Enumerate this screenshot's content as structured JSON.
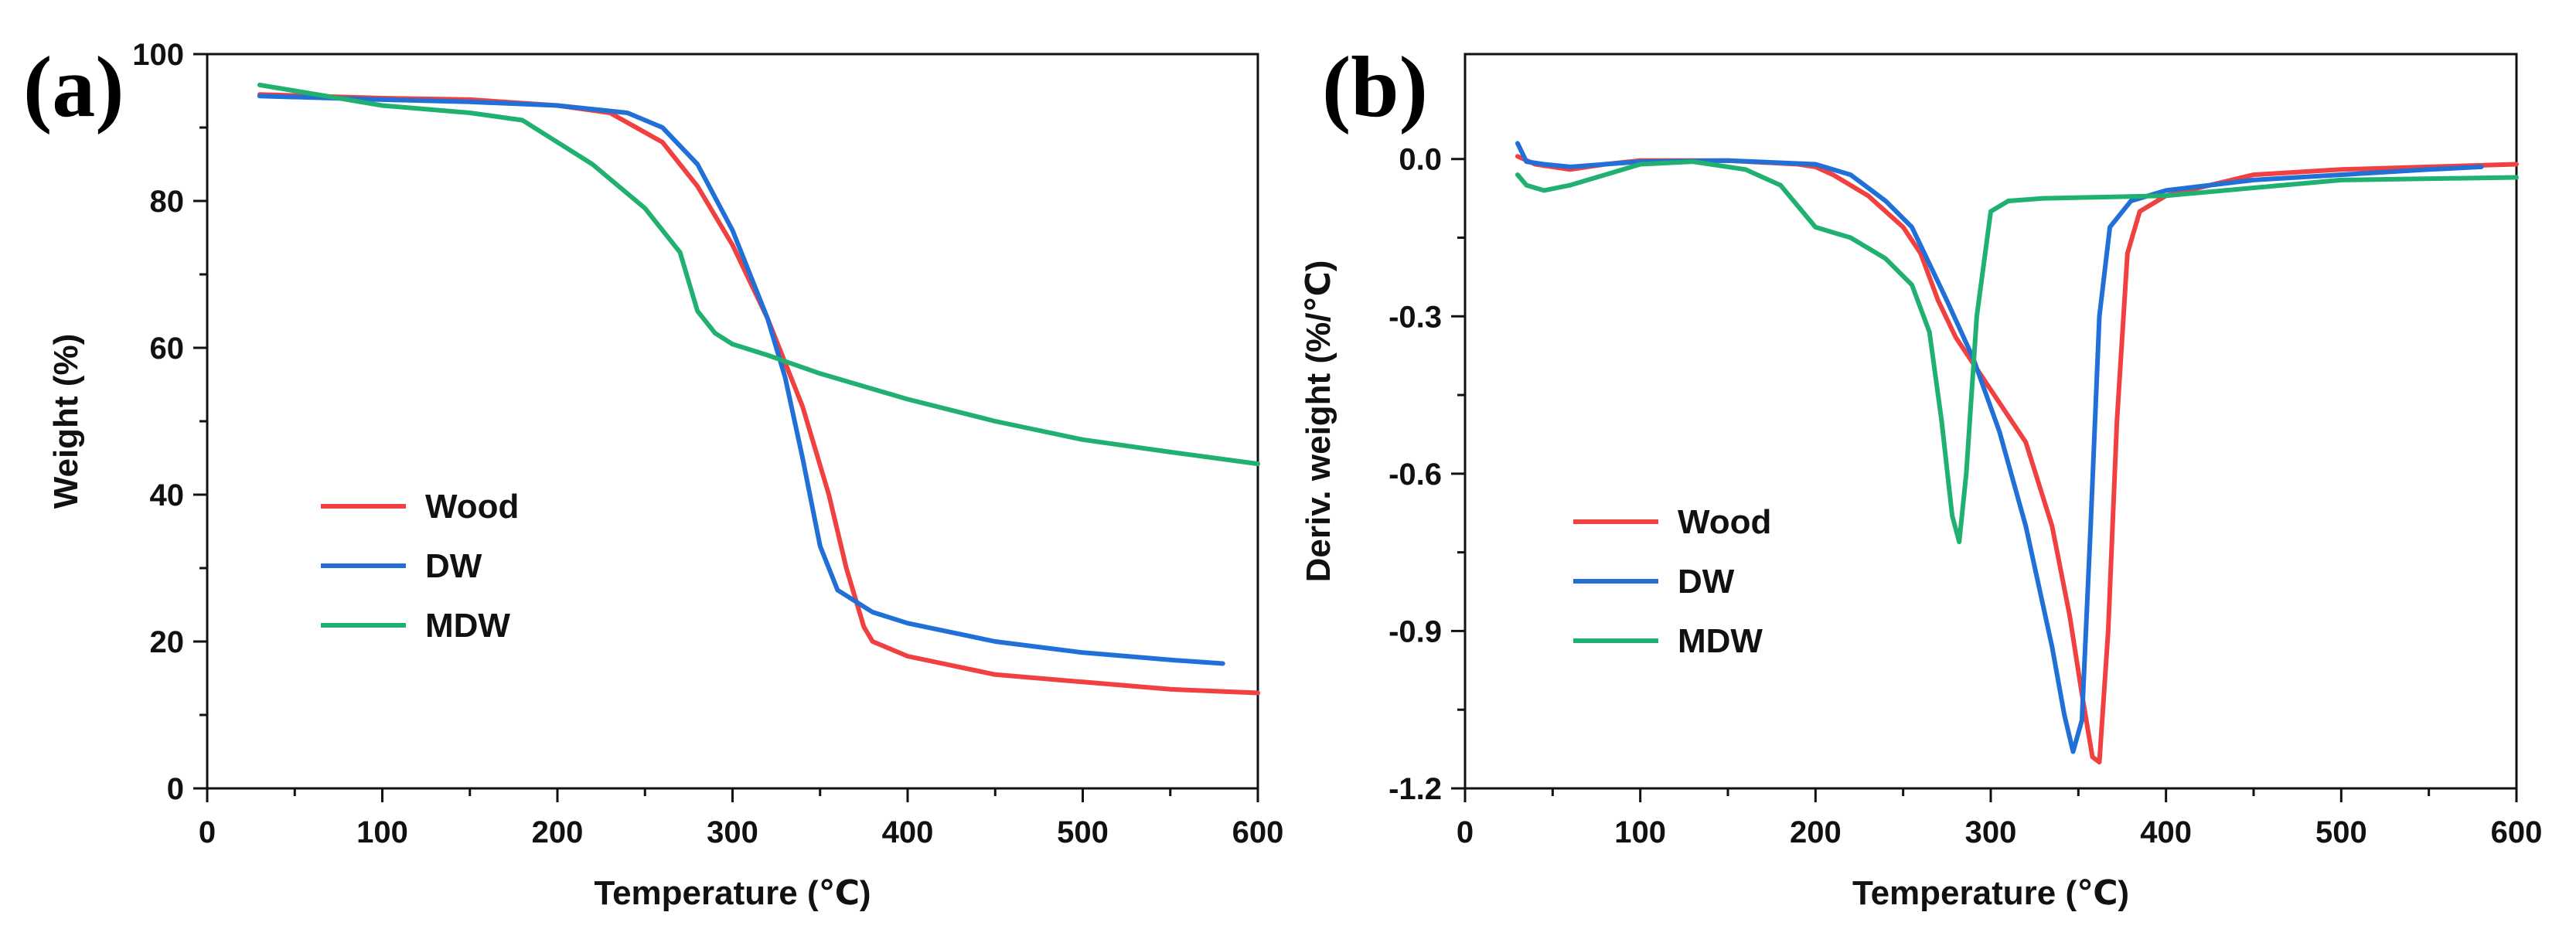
{
  "chart_data": [
    {
      "type": "line",
      "panel_label": "(a)",
      "title": "",
      "xlabel": "Temperature (℃)",
      "ylabel": "Weight (%)",
      "xlim": [
        0,
        600
      ],
      "ylim": [
        0,
        100
      ],
      "x_ticks": [
        "0",
        "100",
        "200",
        "300",
        "400",
        "500",
        "600"
      ],
      "y_ticks": [
        "0",
        "20",
        "40",
        "60",
        "80",
        "100"
      ],
      "legend_position": "lower-left",
      "series": [
        {
          "name": "Wood",
          "color": "#f04040",
          "x": [
            30,
            100,
            150,
            200,
            230,
            260,
            280,
            300,
            320,
            340,
            355,
            365,
            375,
            380,
            400,
            450,
            500,
            550,
            600
          ],
          "y": [
            94.5,
            94,
            93.8,
            93,
            92,
            88,
            82,
            74,
            64,
            52,
            40,
            30,
            22,
            20,
            18,
            15.5,
            14.5,
            13.5,
            13
          ]
        },
        {
          "name": "DW",
          "color": "#2070d8",
          "x": [
            30,
            100,
            150,
            200,
            240,
            260,
            280,
            300,
            320,
            330,
            340,
            350,
            360,
            380,
            400,
            450,
            500,
            550,
            580
          ],
          "y": [
            94.3,
            93.8,
            93.5,
            93,
            92,
            90,
            85,
            76,
            64,
            56,
            45,
            33,
            27,
            24,
            22.5,
            20,
            18.5,
            17.5,
            17
          ]
        },
        {
          "name": "MDW",
          "color": "#20b070",
          "x": [
            30,
            50,
            100,
            150,
            180,
            200,
            220,
            250,
            270,
            280,
            290,
            300,
            320,
            350,
            400,
            450,
            500,
            550,
            600
          ],
          "y": [
            95.8,
            95,
            93,
            92,
            91,
            88,
            85,
            79,
            73,
            65,
            62,
            60.5,
            59,
            56.5,
            53,
            50,
            47.5,
            45.8,
            44.2
          ]
        }
      ]
    },
    {
      "type": "line",
      "panel_label": "(b)",
      "title": "",
      "xlabel": "Temperature (℃)",
      "ylabel": "Deriv. weight (%/℃)",
      "xlim": [
        0,
        600
      ],
      "ylim": [
        -1.2,
        0.2
      ],
      "x_ticks": [
        "0",
        "100",
        "200",
        "300",
        "400",
        "500",
        "600"
      ],
      "y_ticks": [
        "-1.2",
        "-0.9",
        "-0.6",
        "-0.3",
        "0.0"
      ],
      "legend_position": "lower-left",
      "series": [
        {
          "name": "Wood",
          "color": "#f04040",
          "x": [
            30,
            40,
            60,
            80,
            100,
            150,
            190,
            200,
            210,
            230,
            250,
            260,
            270,
            280,
            300,
            320,
            335,
            345,
            352,
            358,
            362,
            367,
            372,
            378,
            385,
            400,
            450,
            500,
            550,
            600
          ],
          "y": [
            0.005,
            -0.01,
            -0.02,
            -0.01,
            -0.003,
            -0.003,
            -0.01,
            -0.015,
            -0.03,
            -0.07,
            -0.13,
            -0.18,
            -0.27,
            -0.34,
            -0.44,
            -0.54,
            -0.7,
            -0.87,
            -1.02,
            -1.14,
            -1.15,
            -0.9,
            -0.5,
            -0.18,
            -0.1,
            -0.07,
            -0.03,
            -0.02,
            -0.015,
            -0.01
          ]
        },
        {
          "name": "DW",
          "color": "#2070d8",
          "x": [
            30,
            35,
            45,
            60,
            80,
            100,
            150,
            200,
            220,
            240,
            255,
            265,
            275,
            290,
            305,
            320,
            335,
            342,
            347,
            352,
            357,
            362,
            368,
            380,
            400,
            450,
            500,
            550,
            580
          ],
          "y": [
            0.03,
            -0.005,
            -0.01,
            -0.015,
            -0.01,
            -0.005,
            -0.003,
            -0.01,
            -0.03,
            -0.08,
            -0.13,
            -0.2,
            -0.27,
            -0.38,
            -0.52,
            -0.7,
            -0.93,
            -1.06,
            -1.13,
            -1.07,
            -0.7,
            -0.3,
            -0.13,
            -0.08,
            -0.06,
            -0.04,
            -0.03,
            -0.02,
            -0.015
          ]
        },
        {
          "name": "MDW",
          "color": "#20b070",
          "x": [
            30,
            35,
            45,
            60,
            80,
            100,
            130,
            160,
            180,
            190,
            200,
            210,
            220,
            240,
            255,
            265,
            272,
            278,
            282,
            286,
            292,
            300,
            310,
            330,
            400,
            500,
            600
          ],
          "y": [
            -0.03,
            -0.05,
            -0.06,
            -0.05,
            -0.03,
            -0.01,
            -0.005,
            -0.02,
            -0.05,
            -0.09,
            -0.13,
            -0.14,
            -0.15,
            -0.19,
            -0.24,
            -0.33,
            -0.5,
            -0.68,
            -0.73,
            -0.6,
            -0.3,
            -0.1,
            -0.08,
            -0.075,
            -0.07,
            -0.04,
            -0.035
          ]
        }
      ]
    }
  ]
}
